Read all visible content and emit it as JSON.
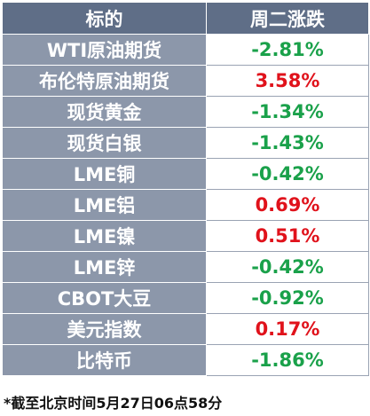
{
  "table": {
    "header": [
      "标的",
      "周二涨跌"
    ],
    "rows": [
      [
        "WTI原油期货",
        "-2.81%"
      ],
      [
        "布伦特原油期货",
        "3.58%"
      ],
      [
        "现货黄金",
        "-1.34%"
      ],
      [
        "现货白银",
        "-1.43%"
      ],
      [
        "LME铜",
        "-0.42%"
      ],
      [
        "LME铝",
        "0.69%"
      ],
      [
        "LME镍",
        "0.51%"
      ],
      [
        "LME锌",
        "-0.42%"
      ],
      [
        "CBOT大豆",
        "-0.92%"
      ],
      [
        "美元指数",
        "0.17%"
      ],
      [
        "比特币",
        "-1.86%"
      ]
    ],
    "positive_color": "#e0121b",
    "negative_color": "#1aa14a"
  },
  "footnote": "*截至北京时间5月27日06点58分"
}
